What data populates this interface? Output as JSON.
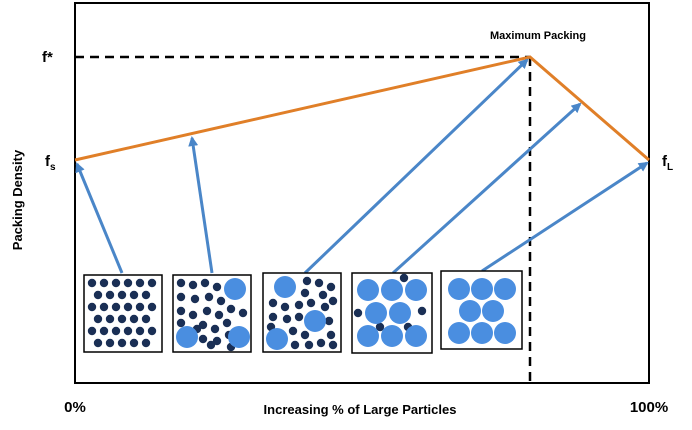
{
  "title": "Maximum Packing",
  "y_axis_label": "Packing Density",
  "x_axis_label": "Increasing % of Large Particles",
  "y_ticks": {
    "f_star": "f*",
    "f_s": {
      "base": "f",
      "sub": "s"
    },
    "f_L": {
      "base": "f",
      "sub": "L"
    }
  },
  "x_ticks": {
    "left": "0%",
    "right": "100%"
  },
  "colors": {
    "orange_line": "#e07f28",
    "arrow_blue": "#4a86c8",
    "small_particle": "#1a2f55",
    "large_particle": "#4a8ee0",
    "axis": "#000000"
  },
  "packing_boxes": [
    {
      "name": "all-small"
    },
    {
      "name": "few-large"
    },
    {
      "name": "mixed"
    },
    {
      "name": "mostly-large"
    },
    {
      "name": "all-large"
    }
  ]
}
